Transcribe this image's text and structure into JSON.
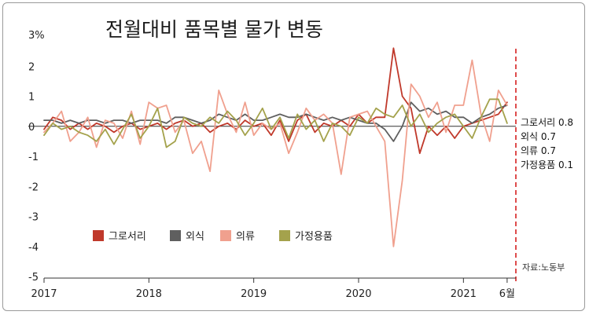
{
  "chart_data": {
    "type": "line",
    "title": "전월대비 품목별 물가 변동",
    "y_unit_label": "3%",
    "ylim": [
      -5,
      3
    ],
    "y_ticks": [
      2,
      1,
      0,
      -1,
      -2,
      -3,
      -4,
      -5
    ],
    "x_tick_labels": [
      "2017",
      "2018",
      "2019",
      "2020",
      "2021",
      "6월"
    ],
    "x_tick_positions": [
      0,
      12,
      24,
      36,
      48,
      53
    ],
    "x_range": [
      0,
      54
    ],
    "zero_line": true,
    "grid": false,
    "legend_position": "bottom-left",
    "source": "자료:노동부",
    "series": [
      {
        "name": "그로서리",
        "color": "#c0392b",
        "end_label": "그로서리 0.8",
        "values": [
          -0.1,
          0.3,
          0.2,
          -0.1,
          0.1,
          -0.1,
          0.1,
          0.0,
          -0.2,
          0.0,
          0.1,
          -0.1,
          0.0,
          0.1,
          -0.1,
          0.1,
          0.2,
          0.0,
          0.1,
          -0.2,
          0.0,
          0.1,
          -0.1,
          0.2,
          0.0,
          0.1,
          -0.3,
          0.2,
          -0.5,
          0.2,
          0.4,
          -0.2,
          0.1,
          0.0,
          0.2,
          0.0,
          0.4,
          0.1,
          0.3,
          0.3,
          2.6,
          1.0,
          0.6,
          -0.9,
          0.0,
          -0.3,
          0.0,
          -0.4,
          0.0,
          0.1,
          0.2,
          0.3,
          0.4,
          0.8
        ]
      },
      {
        "name": "외식",
        "color": "#5f5f5f",
        "end_label": "외식 0.7",
        "values": [
          0.2,
          0.2,
          0.1,
          0.2,
          0.1,
          0.2,
          0.2,
          0.1,
          0.2,
          0.2,
          0.1,
          0.2,
          0.2,
          0.2,
          0.1,
          0.3,
          0.3,
          0.2,
          0.1,
          0.2,
          0.4,
          0.3,
          0.2,
          0.4,
          0.2,
          0.2,
          0.3,
          0.4,
          0.3,
          0.3,
          0.4,
          0.3,
          0.2,
          0.3,
          0.2,
          0.3,
          0.2,
          0.1,
          0.1,
          -0.1,
          -0.5,
          0.0,
          0.8,
          0.5,
          0.6,
          0.4,
          0.5,
          0.3,
          0.3,
          0.1,
          0.3,
          0.4,
          0.6,
          0.7
        ]
      },
      {
        "name": "의류",
        "color": "#f0a08e",
        "end_label": "의류 0.7",
        "values": [
          -0.2,
          0.1,
          0.5,
          -0.5,
          -0.2,
          0.3,
          -0.7,
          0.2,
          0.1,
          -0.4,
          0.5,
          -0.6,
          0.8,
          0.6,
          0.7,
          -0.2,
          0.2,
          -0.9,
          -0.5,
          -1.5,
          1.2,
          0.4,
          -0.2,
          0.8,
          -0.3,
          0.1,
          -0.1,
          0.1,
          -0.9,
          -0.2,
          0.6,
          0.2,
          0.4,
          0.1,
          -1.6,
          0.3,
          0.4,
          0.5,
          0.0,
          -0.5,
          -4.0,
          -1.8,
          1.4,
          1.0,
          0.3,
          0.8,
          -0.2,
          0.7,
          0.7,
          2.2,
          0.4,
          -0.5,
          1.2,
          0.7
        ]
      },
      {
        "name": "가정용품",
        "color": "#a4a24c",
        "end_label": "가정용품 0.1",
        "values": [
          -0.3,
          0.1,
          -0.1,
          0.0,
          -0.2,
          -0.3,
          -0.5,
          -0.1,
          -0.6,
          -0.1,
          0.4,
          -0.4,
          0.0,
          0.6,
          -0.7,
          -0.5,
          0.3,
          0.1,
          0.0,
          0.3,
          0.1,
          0.5,
          0.2,
          -0.3,
          0.1,
          0.6,
          -0.1,
          0.3,
          -0.4,
          0.4,
          -0.1,
          0.2,
          -0.5,
          0.1,
          0.0,
          -0.3,
          0.3,
          0.1,
          0.6,
          0.4,
          0.3,
          0.7,
          0.0,
          0.4,
          -0.2,
          0.1,
          0.3,
          0.4,
          0.0,
          -0.4,
          0.3,
          0.9,
          0.9,
          0.1
        ]
      }
    ]
  }
}
